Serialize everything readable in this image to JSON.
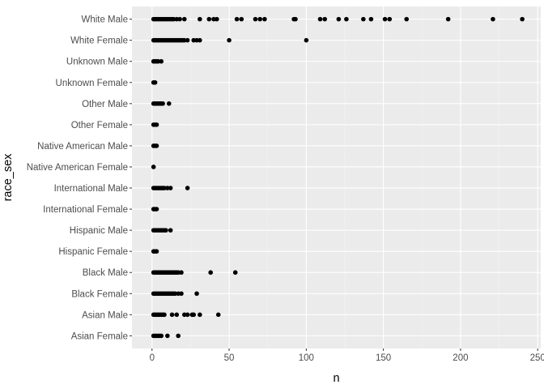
{
  "chart_data": {
    "type": "scatter",
    "xlabel": "n",
    "ylabel": "race_sex",
    "xlim": [
      -13,
      252
    ],
    "x_ticks": [
      0,
      50,
      100,
      150,
      200,
      250
    ],
    "x_tick_labels": [
      "0",
      "50",
      "100",
      "150",
      "200",
      "250"
    ],
    "grid": true,
    "categories": [
      "Asian Female",
      "Asian Male",
      "Black Female",
      "Black Male",
      "Hispanic Female",
      "Hispanic Male",
      "International Female",
      "International Male",
      "Native American Female",
      "Native American Male",
      "Other Female",
      "Other Male",
      "Unknown Female",
      "Unknown Male",
      "White Female",
      "White Male"
    ],
    "points": {
      "Asian Female": [
        1,
        2,
        3,
        4,
        5,
        6,
        10,
        17
      ],
      "Asian Male": [
        1,
        2,
        3,
        4,
        5,
        6,
        7,
        8,
        13,
        16,
        21,
        23,
        26,
        27,
        31,
        43
      ],
      "Black Female": [
        1,
        2,
        3,
        4,
        5,
        6,
        7,
        8,
        9,
        10,
        11,
        12,
        13,
        14,
        15,
        17,
        19,
        29
      ],
      "Black Male": [
        1,
        2,
        3,
        4,
        5,
        6,
        7,
        8,
        9,
        10,
        11,
        12,
        13,
        14,
        15,
        16,
        17,
        19,
        38,
        54
      ],
      "Hispanic Female": [
        1,
        2,
        3
      ],
      "Hispanic Male": [
        1,
        2,
        3,
        4,
        5,
        6,
        7,
        8,
        9,
        12
      ],
      "International Female": [
        1,
        2,
        3
      ],
      "International Male": [
        1,
        2,
        3,
        4,
        5,
        6,
        7,
        8,
        10,
        12,
        23
      ],
      "Native American Female": [
        1
      ],
      "Native American Male": [
        1,
        2,
        3
      ],
      "Other Female": [
        1,
        2,
        3
      ],
      "Other Male": [
        1,
        2,
        3,
        4,
        5,
        6,
        7,
        11
      ],
      "Unknown Female": [
        1,
        2
      ],
      "Unknown Male": [
        1,
        2,
        3,
        4,
        6
      ],
      "White Female": [
        1,
        2,
        3,
        4,
        5,
        6,
        7,
        8,
        9,
        10,
        11,
        12,
        13,
        14,
        15,
        16,
        17,
        18,
        19,
        20,
        21,
        23,
        27,
        29,
        31,
        50,
        100
      ],
      "White Male": [
        1,
        2,
        3,
        4,
        5,
        6,
        7,
        8,
        9,
        10,
        11,
        12,
        13,
        14,
        16,
        18,
        21,
        31,
        37,
        40,
        42,
        55,
        58,
        67,
        70,
        73,
        92,
        93,
        109,
        112,
        121,
        126,
        137,
        142,
        151,
        154,
        165,
        192,
        221,
        240
      ]
    }
  },
  "colors": {
    "panel_background": "#ebebeb",
    "major_grid": "#ffffff",
    "minor_grid": "#f5f5f5",
    "point": "#000000",
    "tick_text": "#4d4d4d",
    "tick_mark": "#333333"
  }
}
